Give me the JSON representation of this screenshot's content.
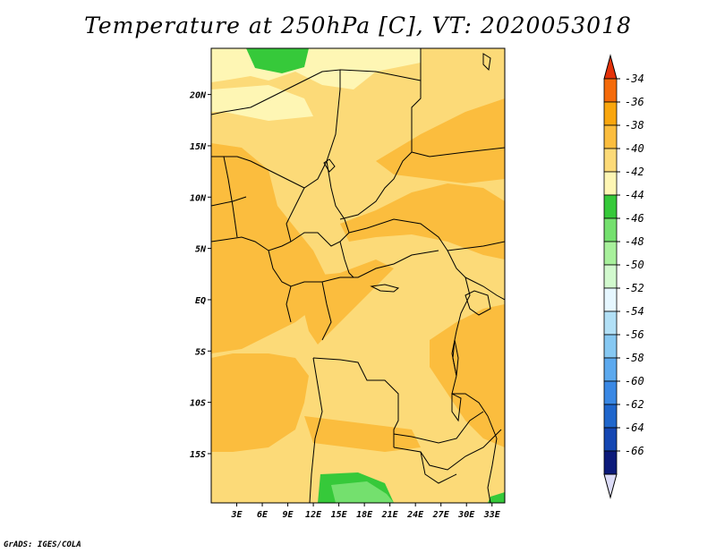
{
  "chart_data": {
    "type": "heatmap",
    "title": "Temperature at 250hPa [C], VT: 2020053018",
    "xlabel": "",
    "ylabel": "",
    "x_ticks": [
      "3E",
      "6E",
      "9E",
      "12E",
      "15E",
      "18E",
      "21E",
      "24E",
      "27E",
      "30E",
      "33E"
    ],
    "y_ticks": [
      "20N",
      "15N",
      "10N",
      "5N",
      "EQ",
      "5S",
      "10S",
      "15S"
    ],
    "x_range_deg": [
      0,
      34.5
    ],
    "y_range_deg": [
      -19.8,
      24.5
    ],
    "colorbar": {
      "levels": [
        "-34",
        "-36",
        "-38",
        "-40",
        "-42",
        "-44",
        "-46",
        "-48",
        "-50",
        "-52",
        "-54",
        "-56",
        "-58",
        "-60",
        "-62",
        "-64",
        "-66"
      ],
      "colors": [
        "#e4320a",
        "#f46a0a",
        "#f9a60e",
        "#fbbd3e",
        "#fcda78",
        "#fef6b4",
        "#36c93a",
        "#74e06e",
        "#a8f09c",
        "#d2f9ce",
        "#e6f7ff",
        "#b2e0f6",
        "#86c8f2",
        "#5ca9ee",
        "#3a88e4",
        "#1f66cc",
        "#1446b2",
        "#0c1a7a",
        "#dcdcf8"
      ]
    },
    "regions": [
      {
        "name": "background",
        "value": "-40 to -42"
      },
      {
        "name": "north-sahara",
        "value": "-42 to -44"
      },
      {
        "name": "far-north-green",
        "value": "-44 to -46"
      },
      {
        "name": "west-africa-coast",
        "value": "-38 to -40"
      },
      {
        "name": "congo-basin",
        "value": "-38 to -40"
      },
      {
        "name": "sudan-band",
        "value": "-38 to -40"
      },
      {
        "name": "east-africa",
        "value": "-38 to -40"
      },
      {
        "name": "south-atlantic",
        "value": "-38 to -40"
      },
      {
        "name": "zambia-band",
        "value": "-38 to -40"
      },
      {
        "name": "southern-green",
        "value": "-44 to -48"
      }
    ]
  },
  "credit": "GrADS: IGES/COLA"
}
